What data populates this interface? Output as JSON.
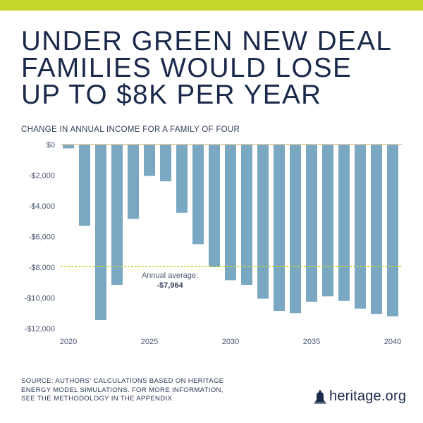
{
  "headline": {
    "lines": [
      "UNDER GREEN NEW DEAL",
      "FAMILIES WOULD LOSE",
      "UP TO $8K PER YEAR"
    ]
  },
  "chart_data": {
    "type": "bar",
    "title": "CHANGE IN ANNUAL INCOME FOR A FAMILY OF FOUR",
    "categories": [
      2020,
      2021,
      2022,
      2023,
      2024,
      2025,
      2026,
      2027,
      2028,
      2029,
      2030,
      2031,
      2032,
      2033,
      2034,
      2035,
      2036,
      2037,
      2038,
      2039,
      2040
    ],
    "values": [
      -250,
      -5300,
      -11450,
      -9150,
      -4850,
      -2050,
      -2400,
      -4450,
      -6500,
      -8000,
      -8850,
      -9150,
      -10050,
      -10850,
      -11000,
      -10250,
      -9900,
      -10200,
      -10700,
      -11050,
      -11200
    ],
    "x_tick_labels": [
      "2020",
      "2025",
      "2030",
      "2035",
      "2040"
    ],
    "y_ticks": [
      0,
      -2000,
      -4000,
      -6000,
      -8000,
      -10000,
      -12000
    ],
    "y_tick_labels": [
      "$0",
      "-$2,000",
      "-$4,000",
      "-$6,000",
      "-$8,000",
      "-$10,000",
      "-$12,000"
    ],
    "ylim": [
      -12000,
      0
    ],
    "reference_line": {
      "value": -7964,
      "label": "Annual average:",
      "value_label": "-$7,964"
    },
    "colors": {
      "bar": "#7aa7c2",
      "zero_line": "#c9b68f",
      "reference_line": "#c5d62b",
      "axis_text": "#4a5670"
    }
  },
  "footer": {
    "source_lines": [
      "SOURCE: AUTHORS' CALCULATIONS BASED ON HERITAGE",
      "ENERGY MODEL SIMULATIONS. FOR MORE INFORMATION,",
      "SEE THE METHODOLOGY IN THE APPENDIX."
    ],
    "brand": "heritage.org",
    "brand_icon": "bell-icon"
  },
  "colors": {
    "accent_bar": "#c5d62b",
    "text_navy": "#1b2a4a"
  }
}
